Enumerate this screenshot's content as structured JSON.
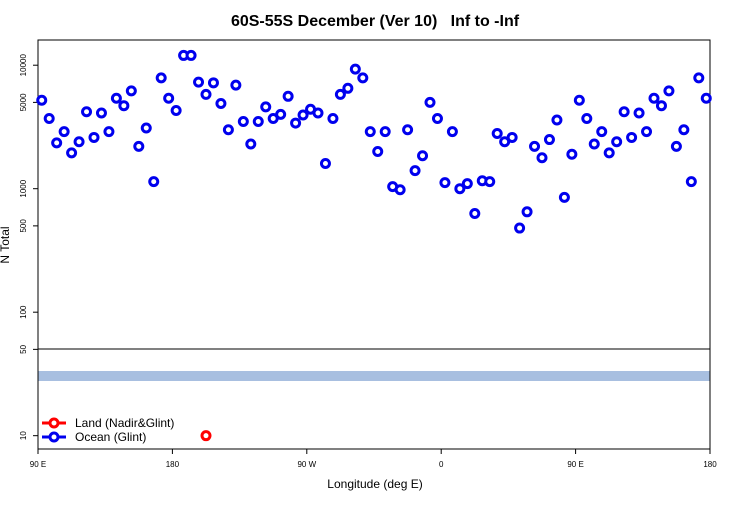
{
  "chart_data": {
    "type": "scatter",
    "title": "60S-55S December (Ver 10)   Inf to -Inf",
    "xlabel": "Longitude (deg E)",
    "ylabel": "N Total",
    "xlim": [
      90,
      540
    ],
    "xticks": [
      {
        "value": 90,
        "label": "90 E"
      },
      180,
      {
        "value": 270,
        "label": "90 W"
      },
      {
        "value": 360,
        "label": "0"
      },
      {
        "value": 450,
        "label": "90 E"
      },
      {
        "value": 540,
        "label": "180"
      }
    ],
    "ylim": [
      7.8,
      16000
    ],
    "yticks": [
      10,
      50,
      100,
      500,
      1000,
      5000,
      10000
    ],
    "log_y": true,
    "legend": "bottom-left",
    "series": [
      {
        "name": "Land (Nadir&Glint)",
        "color": "#ff0000",
        "x": [
          202.5
        ],
        "values": [
          10
        ]
      },
      {
        "name": "Ocean (Glint)",
        "color": "#0000ee",
        "x": [
          92.5,
          97.5,
          102.5,
          107.5,
          112.5,
          117.5,
          122.5,
          127.5,
          132.5,
          137.5,
          142.5,
          147.5,
          152.5,
          157.5,
          162.5,
          167.5,
          172.5,
          177.5,
          182.5,
          187.5,
          192.5,
          197.5,
          202.5,
          207.5,
          212.5,
          217.5,
          222.5,
          227.5,
          232.5,
          237.5,
          242.5,
          247.5,
          252.5,
          257.5,
          262.5,
          267.5,
          272.5,
          277.5,
          282.5,
          287.5,
          292.5,
          297.5,
          302.5,
          307.5,
          312.5,
          317.5,
          322.5,
          327.5,
          332.5,
          337.5,
          342.5,
          347.5,
          352.5,
          357.5,
          362.5,
          367.5,
          372.5,
          377.5,
          382.5,
          387.5,
          392.5,
          397.5,
          402.5,
          407.5,
          412.5,
          417.5,
          422.5,
          427.5,
          432.5,
          437.5,
          442.5,
          447.5,
          452.5,
          457.5,
          462.5,
          467.5,
          472.5,
          477.5,
          482.5,
          487.5,
          492.5,
          497.5,
          502.5,
          507.5,
          512.5,
          517.5,
          522.5,
          527.5,
          532.5,
          537.5
        ],
        "values": [
          5200,
          3700,
          2350,
          2900,
          1950,
          2400,
          4200,
          2600,
          4100,
          2900,
          5400,
          4700,
          6200,
          2200,
          3100,
          1140,
          7900,
          5400,
          4300,
          12000,
          12000,
          7300,
          5800,
          7200,
          4900,
          3000,
          6900,
          3500,
          2300,
          3500,
          4600,
          3700,
          4000,
          5600,
          3400,
          3950,
          4400,
          4100,
          1600,
          3700,
          5800,
          6500,
          9300,
          7900,
          2900,
          2000,
          2900,
          1040,
          980,
          3000,
          1400,
          1850,
          5000,
          3700,
          1120,
          2900,
          1000,
          1100,
          630,
          1160,
          1140,
          2800,
          2400,
          2600,
          480,
          650,
          2200,
          1780,
          2500,
          3600,
          850,
          1900,
          5200,
          3700,
          2300,
          2900,
          1950,
          2400,
          4200,
          2600,
          4100,
          2900,
          5400,
          4700,
          6200,
          2200,
          3000,
          1140,
          7900,
          5400
        ]
      }
    ]
  }
}
